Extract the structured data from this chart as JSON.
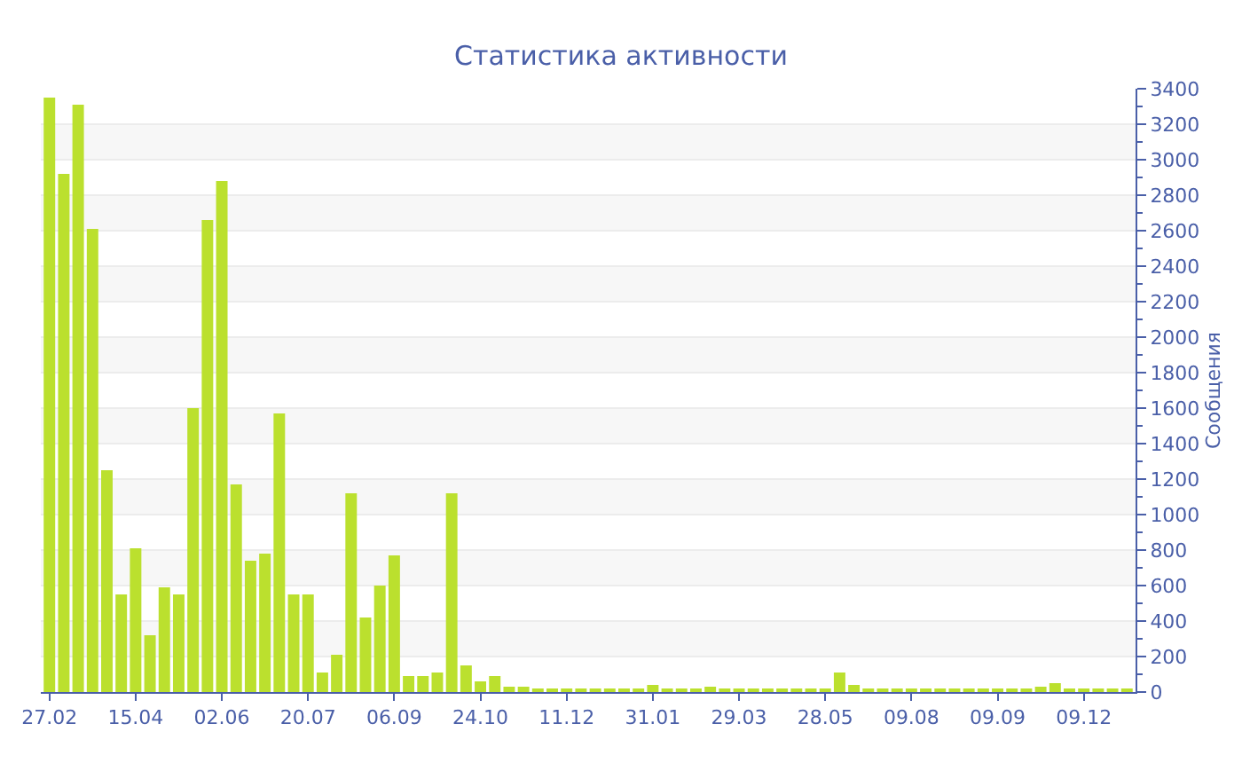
{
  "chart_data": {
    "type": "bar",
    "title": "Статистика активности",
    "ylabel": "Сообщения",
    "categories": [
      "27.02",
      null,
      null,
      null,
      null,
      null,
      "15.04",
      null,
      null,
      null,
      null,
      null,
      "02.06",
      null,
      null,
      null,
      null,
      null,
      "20.07",
      null,
      null,
      null,
      null,
      null,
      "06.09",
      null,
      null,
      null,
      null,
      null,
      "24.10",
      null,
      null,
      null,
      null,
      null,
      "11.12",
      null,
      null,
      null,
      null,
      null,
      "31.01",
      null,
      null,
      null,
      null,
      null,
      "29.03",
      null,
      null,
      null,
      null,
      null,
      "28.05",
      null,
      null,
      null,
      null,
      null,
      "09.08",
      null,
      null,
      null,
      null,
      null,
      "09.09",
      null,
      null,
      null,
      null,
      null,
      "09.12",
      null,
      null,
      null
    ],
    "values": [
      3350,
      2920,
      3310,
      2610,
      1250,
      550,
      810,
      320,
      590,
      550,
      1600,
      2660,
      2880,
      1170,
      740,
      780,
      1570,
      550,
      550,
      110,
      210,
      1120,
      420,
      600,
      770,
      90,
      90,
      110,
      1120,
      150,
      60,
      90,
      30,
      30,
      20,
      20,
      20,
      20,
      20,
      20,
      20,
      20,
      40,
      20,
      20,
      20,
      30,
      20,
      20,
      20,
      20,
      20,
      15,
      15,
      15,
      110,
      40,
      15,
      15,
      15,
      20,
      20,
      15,
      15,
      15,
      20,
      15,
      15,
      15,
      30,
      50,
      15,
      20,
      20,
      20,
      20
    ],
    "color": "#bbe02e",
    "ylim": [
      0,
      3400
    ],
    "yticks": [
      0,
      200,
      400,
      600,
      800,
      1000,
      1200,
      1400,
      1600,
      1800,
      2000,
      2200,
      2400,
      2600,
      2800,
      3000,
      3200,
      3400
    ],
    "grid": true
  }
}
